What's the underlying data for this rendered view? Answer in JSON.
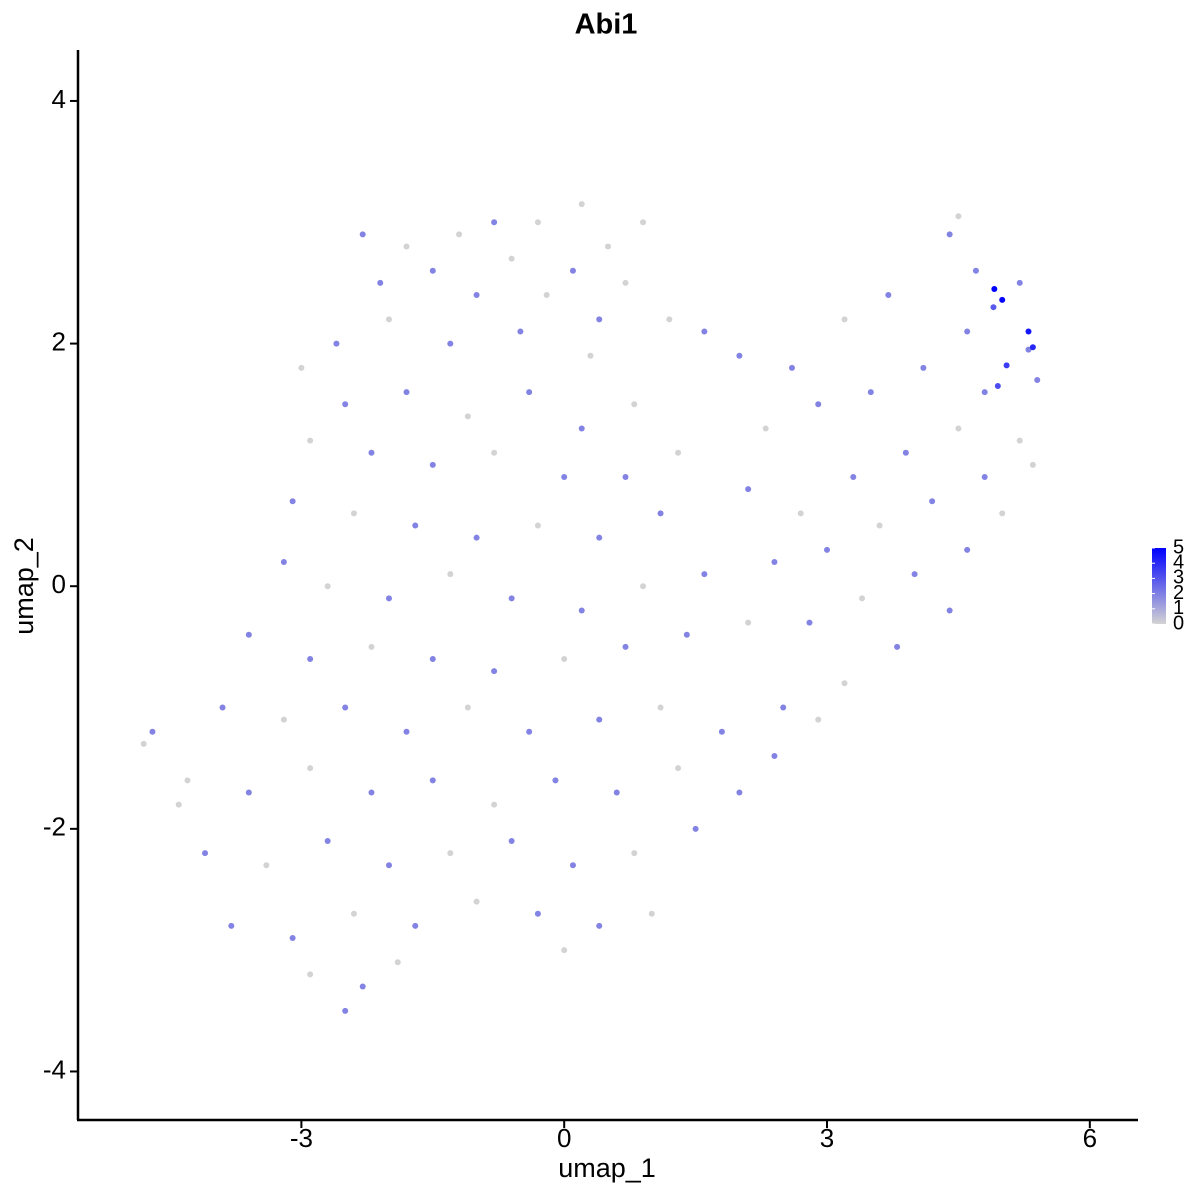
{
  "chart_data": {
    "type": "scatter",
    "title": "Abi1",
    "xlabel": "umap_1",
    "ylabel": "umap_2",
    "xlim": [
      -5.55,
      6.55
    ],
    "ylim": [
      -4.4,
      4.42
    ],
    "xticks": [
      -3,
      0,
      3,
      6
    ],
    "yticks": [
      -4,
      -2,
      0,
      2,
      4
    ],
    "color_low": "#d3d3d3",
    "color_high": "#0000ff",
    "clim": [
      0,
      5
    ],
    "colorbar_ticks": [
      0,
      1,
      2,
      3,
      4,
      5
    ],
    "series": [
      {
        "x": [
          -2.3,
          -1.8,
          -1.2,
          -0.8,
          -0.3,
          0.2,
          0.5,
          0.9,
          -1.5,
          -0.6,
          0.1,
          0.7,
          -2.1,
          -1.0,
          -0.2,
          0.4,
          -2.6,
          -2.0,
          -1.3,
          -0.5,
          0.3,
          1.2,
          1.6,
          -3.0,
          -2.5,
          -1.8,
          -1.1,
          -0.4,
          0.2,
          0.8,
          -2.9,
          -2.2,
          -1.5,
          -0.8,
          0.0,
          0.7,
          1.3,
          -3.1,
          -2.4,
          -1.7,
          -1.0,
          -0.3,
          0.4,
          1.1,
          -3.2,
          -2.7,
          -2.0,
          -1.3,
          -0.6,
          0.2,
          0.9,
          1.6,
          -3.6,
          -2.9,
          -2.2,
          -1.5,
          -0.8,
          0.0,
          0.7,
          1.4,
          2.1,
          -3.9,
          -3.2,
          -2.5,
          -1.8,
          -1.1,
          -0.4,
          0.4,
          1.1,
          1.8,
          2.5,
          -4.3,
          -3.6,
          -2.9,
          -2.2,
          -1.5,
          -0.8,
          -0.1,
          0.6,
          1.3,
          2.0,
          -4.1,
          -3.4,
          -2.7,
          -2.0,
          -1.3,
          -0.6,
          0.1,
          0.8,
          1.5,
          -3.8,
          -3.1,
          -2.4,
          -1.7,
          -1.0,
          -0.3,
          0.4,
          -2.9,
          -2.3,
          -1.9,
          -2.5,
          -4.8,
          -4.7,
          -4.4,
          0.0,
          1.0,
          2.0,
          2.6,
          3.2,
          3.7,
          2.3,
          2.9,
          3.5,
          4.1,
          2.1,
          2.7,
          3.3,
          3.9,
          4.5,
          2.4,
          3.0,
          3.6,
          4.2,
          4.8,
          2.8,
          3.4,
          4.0,
          4.6,
          3.2,
          3.8,
          4.4,
          5.0,
          2.4,
          2.9,
          4.4,
          4.5,
          4.7,
          4.9,
          5.2,
          4.6,
          5.3,
          5.4,
          4.8,
          5.2,
          5.35,
          4.91,
          5.0,
          5.3,
          5.35,
          5.05,
          4.95
        ],
        "y": [
          2.9,
          2.8,
          2.9,
          3.0,
          3.0,
          3.15,
          2.8,
          3.0,
          2.6,
          2.7,
          2.6,
          2.5,
          2.5,
          2.4,
          2.4,
          2.2,
          2.0,
          2.2,
          2.0,
          2.1,
          1.9,
          2.2,
          2.1,
          1.8,
          1.5,
          1.6,
          1.4,
          1.6,
          1.3,
          1.5,
          1.2,
          1.1,
          1.0,
          1.1,
          0.9,
          0.9,
          1.1,
          0.7,
          0.6,
          0.5,
          0.4,
          0.5,
          0.4,
          0.6,
          0.2,
          0.0,
          -0.1,
          0.1,
          -0.1,
          -0.2,
          0.0,
          0.1,
          -0.4,
          -0.6,
          -0.5,
          -0.6,
          -0.7,
          -0.6,
          -0.5,
          -0.4,
          -0.3,
          -1.0,
          -1.1,
          -1.0,
          -1.2,
          -1.0,
          -1.2,
          -1.1,
          -1.0,
          -1.2,
          -1.0,
          -1.6,
          -1.7,
          -1.5,
          -1.7,
          -1.6,
          -1.8,
          -1.6,
          -1.7,
          -1.5,
          -1.7,
          -2.2,
          -2.3,
          -2.1,
          -2.3,
          -2.2,
          -2.1,
          -2.3,
          -2.2,
          -2.0,
          -2.8,
          -2.9,
          -2.7,
          -2.8,
          -2.6,
          -2.7,
          -2.8,
          -3.2,
          -3.3,
          -3.1,
          -3.5,
          -1.3,
          -1.2,
          -1.8,
          -3.0,
          -2.7,
          1.9,
          1.8,
          2.2,
          2.4,
          1.3,
          1.5,
          1.6,
          1.8,
          0.8,
          0.6,
          0.9,
          1.1,
          1.3,
          0.2,
          0.3,
          0.5,
          0.7,
          0.9,
          -0.3,
          -0.1,
          0.1,
          0.3,
          -0.8,
          -0.5,
          -0.2,
          0.6,
          -1.4,
          -1.1,
          2.9,
          3.05,
          2.6,
          2.3,
          2.5,
          2.1,
          1.95,
          1.7,
          1.6,
          1.2,
          1.0,
          2.45,
          2.36,
          2.1,
          1.97,
          1.82,
          1.65
        ],
        "values": [
          1,
          0,
          0,
          1,
          0,
          0,
          0,
          0,
          1,
          0,
          1,
          0,
          1,
          1,
          0,
          1,
          1,
          0,
          1,
          1,
          0,
          0,
          1,
          0,
          1,
          1,
          0,
          1,
          1,
          0,
          0,
          1,
          1,
          0,
          1,
          1,
          0,
          1,
          0,
          1,
          1,
          0,
          1,
          1,
          1,
          0,
          1,
          0,
          1,
          1,
          0,
          1,
          1,
          1,
          0,
          1,
          1,
          0,
          1,
          1,
          0,
          1,
          0,
          1,
          1,
          0,
          1,
          1,
          0,
          1,
          1,
          0,
          1,
          0,
          1,
          1,
          0,
          1,
          1,
          0,
          1,
          1,
          0,
          1,
          1,
          0,
          1,
          1,
          0,
          1,
          1,
          1,
          0,
          1,
          0,
          1,
          1,
          0,
          1,
          0,
          1,
          0,
          1,
          0,
          0,
          0,
          1,
          1,
          0,
          1,
          0,
          1,
          1,
          1,
          1,
          0,
          1,
          1,
          0,
          1,
          1,
          0,
          1,
          1,
          1,
          0,
          1,
          1,
          0,
          1,
          1,
          0,
          1,
          0,
          1,
          0,
          1,
          2,
          1,
          1,
          1,
          1,
          1,
          0,
          0,
          4.6,
          4,
          3.6,
          3.2,
          2.7,
          2.3
        ]
      }
    ]
  }
}
